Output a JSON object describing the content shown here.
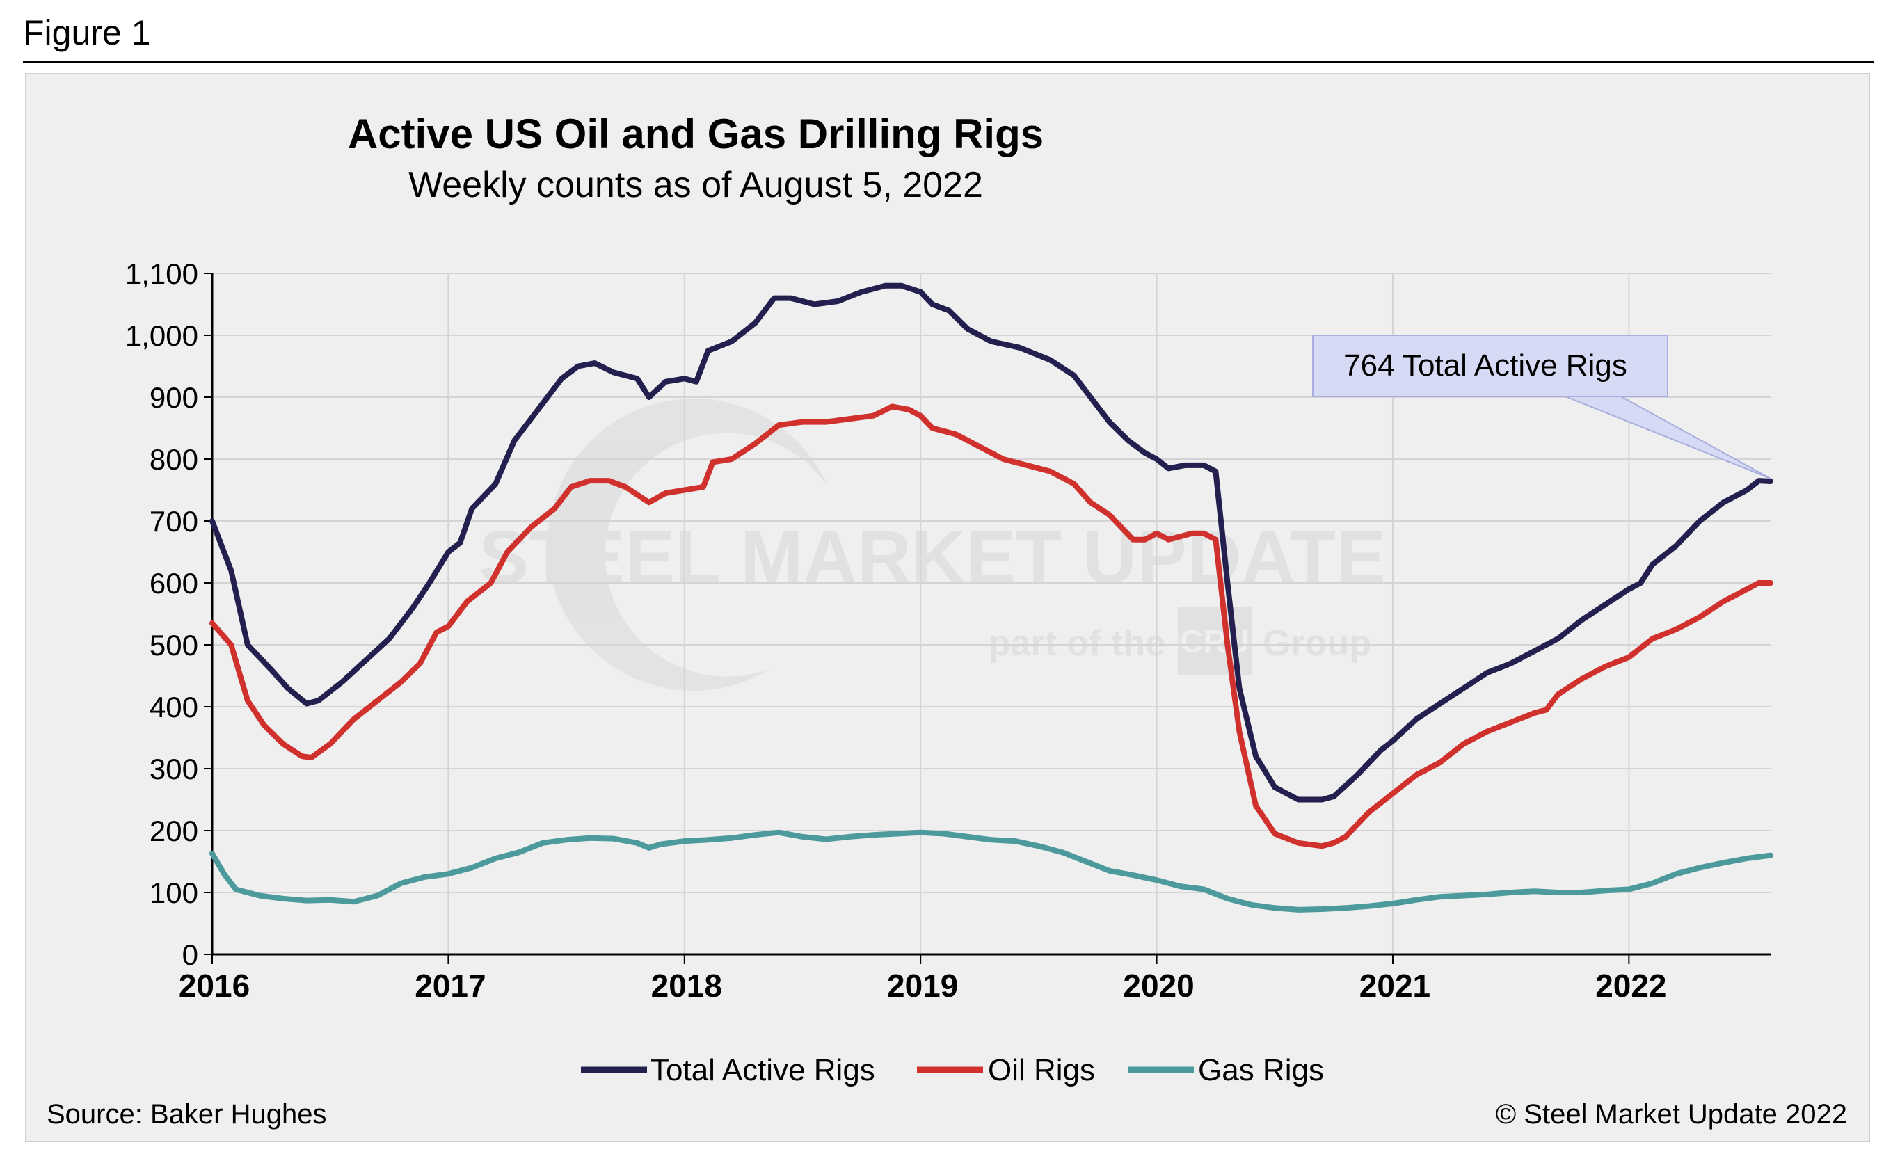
{
  "figure_label": "Figure 1",
  "watermark": {
    "brand": "STEEL MARKET UPDATE",
    "tagline_before": "part of the",
    "tagline_after": "Group",
    "tagline_logo": "CRU"
  },
  "source": "Source: Baker Hughes",
  "copyright": "© Steel Market Update 2022",
  "callout": "764 Total Active Rigs",
  "colors": {
    "total": "#231f4e",
    "oil": "#d0312d",
    "gas": "#4c9a9c",
    "callout_bg": "#d6daf5",
    "plot_bg": "#efefef",
    "grid": "#d4d4d4"
  },
  "chart_data": {
    "type": "line",
    "title": "Active US Oil and Gas Drilling Rigs",
    "subtitle": "Weekly counts as of August 5, 2022",
    "xlabel": "",
    "ylabel": "",
    "xlim": [
      2016.0,
      2022.6
    ],
    "ylim": [
      0,
      1100
    ],
    "x_ticks": [
      "2016",
      "2017",
      "2018",
      "2019",
      "2020",
      "2021",
      "2022"
    ],
    "y_ticks": [
      "0",
      "100",
      "200",
      "300",
      "400",
      "500",
      "600",
      "700",
      "800",
      "900",
      "1,000",
      "1,100"
    ],
    "grid": true,
    "legend_position": "bottom",
    "series": [
      {
        "name": "Total Active Rigs",
        "color": "#231f4e",
        "points": [
          [
            2016.0,
            700
          ],
          [
            2016.08,
            620
          ],
          [
            2016.15,
            500
          ],
          [
            2016.25,
            460
          ],
          [
            2016.32,
            430
          ],
          [
            2016.4,
            405
          ],
          [
            2016.45,
            410
          ],
          [
            2016.55,
            440
          ],
          [
            2016.65,
            475
          ],
          [
            2016.75,
            510
          ],
          [
            2016.85,
            560
          ],
          [
            2016.92,
            600
          ],
          [
            2017.0,
            650
          ],
          [
            2017.05,
            665
          ],
          [
            2017.1,
            720
          ],
          [
            2017.2,
            760
          ],
          [
            2017.28,
            830
          ],
          [
            2017.38,
            880
          ],
          [
            2017.48,
            930
          ],
          [
            2017.55,
            950
          ],
          [
            2017.62,
            955
          ],
          [
            2017.7,
            940
          ],
          [
            2017.8,
            930
          ],
          [
            2017.85,
            900
          ],
          [
            2017.92,
            925
          ],
          [
            2018.0,
            930
          ],
          [
            2018.05,
            925
          ],
          [
            2018.1,
            975
          ],
          [
            2018.2,
            990
          ],
          [
            2018.3,
            1020
          ],
          [
            2018.38,
            1060
          ],
          [
            2018.45,
            1060
          ],
          [
            2018.55,
            1050
          ],
          [
            2018.65,
            1055
          ],
          [
            2018.75,
            1070
          ],
          [
            2018.85,
            1080
          ],
          [
            2018.92,
            1080
          ],
          [
            2019.0,
            1070
          ],
          [
            2019.05,
            1050
          ],
          [
            2019.12,
            1040
          ],
          [
            2019.2,
            1010
          ],
          [
            2019.3,
            990
          ],
          [
            2019.42,
            980
          ],
          [
            2019.55,
            960
          ],
          [
            2019.65,
            935
          ],
          [
            2019.72,
            900
          ],
          [
            2019.8,
            860
          ],
          [
            2019.88,
            830
          ],
          [
            2019.95,
            810
          ],
          [
            2020.0,
            800
          ],
          [
            2020.05,
            785
          ],
          [
            2020.12,
            790
          ],
          [
            2020.2,
            790
          ],
          [
            2020.25,
            780
          ],
          [
            2020.3,
            600
          ],
          [
            2020.35,
            430
          ],
          [
            2020.42,
            320
          ],
          [
            2020.5,
            270
          ],
          [
            2020.6,
            250
          ],
          [
            2020.7,
            250
          ],
          [
            2020.75,
            255
          ],
          [
            2020.85,
            290
          ],
          [
            2020.95,
            330
          ],
          [
            2021.0,
            345
          ],
          [
            2021.1,
            380
          ],
          [
            2021.2,
            405
          ],
          [
            2021.3,
            430
          ],
          [
            2021.4,
            455
          ],
          [
            2021.5,
            470
          ],
          [
            2021.6,
            490
          ],
          [
            2021.7,
            510
          ],
          [
            2021.8,
            540
          ],
          [
            2021.9,
            565
          ],
          [
            2022.0,
            590
          ],
          [
            2022.05,
            600
          ],
          [
            2022.1,
            630
          ],
          [
            2022.2,
            660
          ],
          [
            2022.3,
            700
          ],
          [
            2022.4,
            730
          ],
          [
            2022.5,
            750
          ],
          [
            2022.55,
            765
          ],
          [
            2022.6,
            764
          ]
        ]
      },
      {
        "name": "Oil Rigs",
        "color": "#d0312d",
        "points": [
          [
            2016.0,
            535
          ],
          [
            2016.08,
            500
          ],
          [
            2016.15,
            410
          ],
          [
            2016.22,
            370
          ],
          [
            2016.3,
            340
          ],
          [
            2016.38,
            320
          ],
          [
            2016.42,
            318
          ],
          [
            2016.5,
            340
          ],
          [
            2016.6,
            380
          ],
          [
            2016.7,
            410
          ],
          [
            2016.8,
            440
          ],
          [
            2016.88,
            470
          ],
          [
            2016.95,
            520
          ],
          [
            2017.0,
            530
          ],
          [
            2017.08,
            570
          ],
          [
            2017.18,
            600
          ],
          [
            2017.25,
            650
          ],
          [
            2017.35,
            690
          ],
          [
            2017.45,
            720
          ],
          [
            2017.52,
            755
          ],
          [
            2017.6,
            765
          ],
          [
            2017.68,
            765
          ],
          [
            2017.75,
            755
          ],
          [
            2017.85,
            730
          ],
          [
            2017.92,
            745
          ],
          [
            2018.0,
            750
          ],
          [
            2018.08,
            755
          ],
          [
            2018.12,
            795
          ],
          [
            2018.2,
            800
          ],
          [
            2018.3,
            825
          ],
          [
            2018.4,
            855
          ],
          [
            2018.5,
            860
          ],
          [
            2018.6,
            860
          ],
          [
            2018.7,
            865
          ],
          [
            2018.8,
            870
          ],
          [
            2018.88,
            885
          ],
          [
            2018.95,
            880
          ],
          [
            2019.0,
            870
          ],
          [
            2019.05,
            850
          ],
          [
            2019.15,
            840
          ],
          [
            2019.25,
            820
          ],
          [
            2019.35,
            800
          ],
          [
            2019.45,
            790
          ],
          [
            2019.55,
            780
          ],
          [
            2019.65,
            760
          ],
          [
            2019.72,
            730
          ],
          [
            2019.8,
            710
          ],
          [
            2019.9,
            670
          ],
          [
            2019.95,
            670
          ],
          [
            2020.0,
            680
          ],
          [
            2020.05,
            670
          ],
          [
            2020.15,
            680
          ],
          [
            2020.2,
            680
          ],
          [
            2020.25,
            670
          ],
          [
            2020.3,
            500
          ],
          [
            2020.35,
            360
          ],
          [
            2020.42,
            240
          ],
          [
            2020.5,
            195
          ],
          [
            2020.6,
            180
          ],
          [
            2020.7,
            175
          ],
          [
            2020.75,
            180
          ],
          [
            2020.8,
            190
          ],
          [
            2020.9,
            230
          ],
          [
            2021.0,
            260
          ],
          [
            2021.1,
            290
          ],
          [
            2021.2,
            310
          ],
          [
            2021.3,
            340
          ],
          [
            2021.4,
            360
          ],
          [
            2021.5,
            375
          ],
          [
            2021.6,
            390
          ],
          [
            2021.65,
            395
          ],
          [
            2021.7,
            420
          ],
          [
            2021.8,
            445
          ],
          [
            2021.9,
            465
          ],
          [
            2022.0,
            480
          ],
          [
            2022.1,
            510
          ],
          [
            2022.2,
            525
          ],
          [
            2022.3,
            545
          ],
          [
            2022.4,
            570
          ],
          [
            2022.5,
            590
          ],
          [
            2022.55,
            600
          ],
          [
            2022.6,
            600
          ]
        ]
      },
      {
        "name": "Gas Rigs",
        "color": "#4c9a9c",
        "points": [
          [
            2016.0,
            163
          ],
          [
            2016.05,
            130
          ],
          [
            2016.1,
            105
          ],
          [
            2016.2,
            95
          ],
          [
            2016.3,
            90
          ],
          [
            2016.4,
            87
          ],
          [
            2016.5,
            88
          ],
          [
            2016.6,
            85
          ],
          [
            2016.7,
            95
          ],
          [
            2016.8,
            115
          ],
          [
            2016.9,
            125
          ],
          [
            2017.0,
            130
          ],
          [
            2017.1,
            140
          ],
          [
            2017.2,
            155
          ],
          [
            2017.3,
            165
          ],
          [
            2017.4,
            180
          ],
          [
            2017.5,
            185
          ],
          [
            2017.6,
            188
          ],
          [
            2017.7,
            187
          ],
          [
            2017.8,
            180
          ],
          [
            2017.85,
            172
          ],
          [
            2017.9,
            178
          ],
          [
            2018.0,
            183
          ],
          [
            2018.1,
            185
          ],
          [
            2018.2,
            188
          ],
          [
            2018.3,
            193
          ],
          [
            2018.4,
            197
          ],
          [
            2018.5,
            190
          ],
          [
            2018.6,
            186
          ],
          [
            2018.7,
            190
          ],
          [
            2018.8,
            193
          ],
          [
            2018.9,
            195
          ],
          [
            2019.0,
            197
          ],
          [
            2019.1,
            195
          ],
          [
            2019.2,
            190
          ],
          [
            2019.3,
            185
          ],
          [
            2019.4,
            183
          ],
          [
            2019.5,
            175
          ],
          [
            2019.6,
            165
          ],
          [
            2019.7,
            150
          ],
          [
            2019.8,
            135
          ],
          [
            2019.9,
            128
          ],
          [
            2020.0,
            120
          ],
          [
            2020.1,
            110
          ],
          [
            2020.2,
            105
          ],
          [
            2020.3,
            90
          ],
          [
            2020.4,
            80
          ],
          [
            2020.5,
            75
          ],
          [
            2020.6,
            72
          ],
          [
            2020.7,
            73
          ],
          [
            2020.8,
            75
          ],
          [
            2020.9,
            78
          ],
          [
            2021.0,
            82
          ],
          [
            2021.1,
            88
          ],
          [
            2021.2,
            93
          ],
          [
            2021.3,
            95
          ],
          [
            2021.4,
            97
          ],
          [
            2021.5,
            100
          ],
          [
            2021.6,
            102
          ],
          [
            2021.7,
            100
          ],
          [
            2021.8,
            100
          ],
          [
            2021.9,
            103
          ],
          [
            2022.0,
            105
          ],
          [
            2022.1,
            115
          ],
          [
            2022.2,
            130
          ],
          [
            2022.3,
            140
          ],
          [
            2022.4,
            148
          ],
          [
            2022.5,
            155
          ],
          [
            2022.6,
            160
          ]
        ]
      }
    ]
  }
}
